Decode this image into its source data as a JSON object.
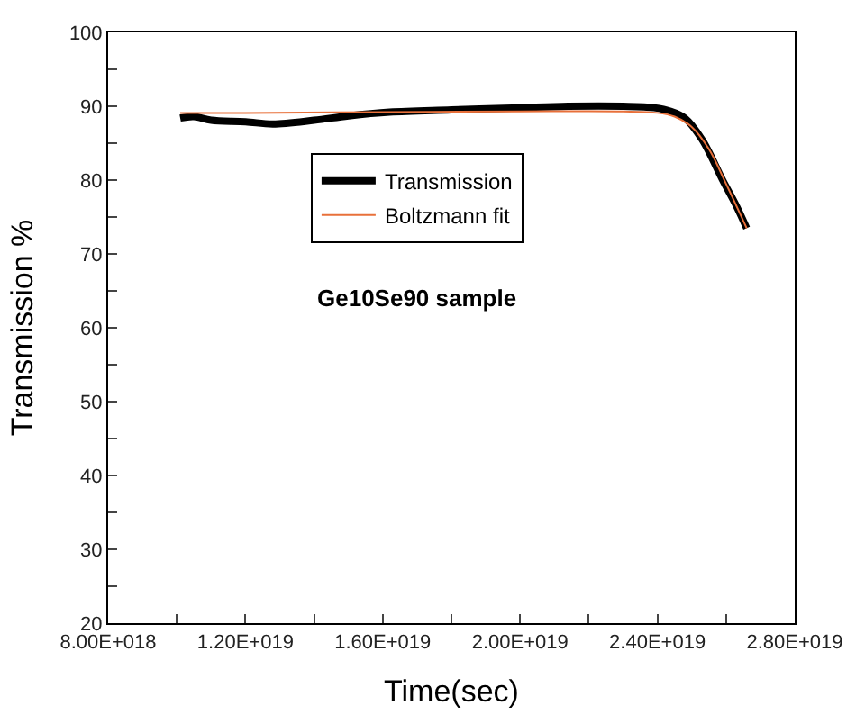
{
  "chart_data": {
    "type": "line",
    "xlabel": "Time(sec)",
    "ylabel": "Transmission %",
    "annotations": [
      "Ge10Se90 sample"
    ],
    "xlim": [
      8e+18,
      2.8e+19
    ],
    "xticks": [
      {
        "value": 8e+18,
        "label": "8.00E+018"
      },
      {
        "value": 1e+19,
        "label": null
      },
      {
        "value": 1.2e+19,
        "label": "1.20E+019"
      },
      {
        "value": 1.4e+19,
        "label": null
      },
      {
        "value": 1.6e+19,
        "label": "1.60E+019"
      },
      {
        "value": 1.8e+19,
        "label": null
      },
      {
        "value": 2e+19,
        "label": "2.00E+019"
      },
      {
        "value": 2.2e+19,
        "label": null
      },
      {
        "value": 2.4e+19,
        "label": "2.40E+019"
      },
      {
        "value": 2.6e+19,
        "label": null
      },
      {
        "value": 2.8e+19,
        "label": "2.80E+019"
      }
    ],
    "ylim": [
      20,
      100
    ],
    "yticks": [
      20,
      {
        "value": 25,
        "label": null
      },
      30,
      {
        "value": 35,
        "label": null
      },
      40,
      {
        "value": 45,
        "label": null
      },
      50,
      {
        "value": 55,
        "label": null
      },
      60,
      {
        "value": 65,
        "label": null
      },
      70,
      {
        "value": 75,
        "label": null
      },
      80,
      {
        "value": 85,
        "label": null
      },
      90,
      {
        "value": 95,
        "label": null
      },
      100
    ],
    "legend": "center",
    "series": [
      {
        "name": "Transmission",
        "color": "#000000",
        "x": [
          1.01e+19,
          1.05e+19,
          1.1e+19,
          1.2e+19,
          1.28e+19,
          1.4e+19,
          1.5e+19,
          1.62e+19,
          1.8e+19,
          2e+19,
          2.14e+19,
          2.3e+19,
          2.39e+19,
          2.44e+19,
          2.48e+19,
          2.53e+19,
          2.59e+19,
          2.63e+19,
          2.66e+19
        ],
        "values": [
          88.4,
          88.6,
          88.1,
          87.9,
          87.6,
          88.1,
          88.7,
          89.2,
          89.5,
          89.8,
          90.0,
          90.0,
          89.8,
          89.3,
          88.4,
          85.5,
          80.0,
          76.5,
          73.5
        ]
      },
      {
        "name": "Boltzmann fit",
        "color": "#e8703a",
        "x": [
          1.01e+19,
          1.2e+19,
          1.6e+19,
          2e+19,
          2.3e+19,
          2.4e+19,
          2.45e+19,
          2.5e+19,
          2.55e+19,
          2.6e+19,
          2.66e+19
        ],
        "values": [
          89.1,
          89.1,
          89.2,
          89.3,
          89.3,
          89.1,
          88.6,
          87.2,
          84.2,
          79.5,
          73.5
        ]
      }
    ]
  }
}
